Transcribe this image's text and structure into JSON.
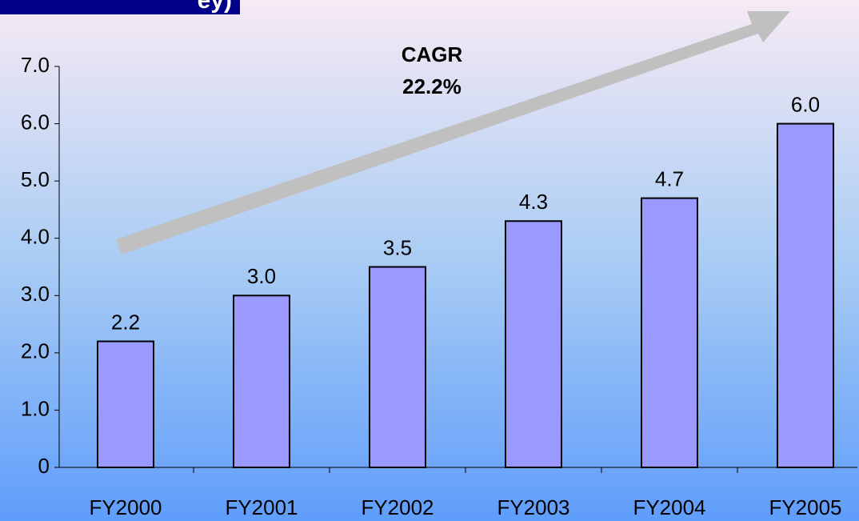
{
  "chart_data": {
    "type": "bar",
    "title": "ey)",
    "annotations": [
      "CAGR",
      "22.2%"
    ],
    "categories": [
      "FY2000",
      "FY2001",
      "FY2002",
      "FY2003",
      "FY2004",
      "FY2005"
    ],
    "values": [
      2.2,
      3.0,
      3.5,
      4.3,
      4.7,
      6.0
    ],
    "value_labels": [
      "2.2",
      "3.0",
      "3.5",
      "4.3",
      "4.7",
      "6.0"
    ],
    "color": "#9999ff",
    "ylim": [
      0,
      7
    ],
    "yticks": [
      0,
      {
        "value": 1,
        "label": "1.0"
      },
      {
        "value": 2,
        "label": "2.0"
      },
      {
        "value": 3,
        "label": "3.0"
      },
      {
        "value": 4,
        "label": "4.0"
      },
      {
        "value": 5,
        "label": "5.0"
      },
      {
        "value": 6,
        "label": "6.0"
      },
      {
        "value": 7,
        "label": "7.0"
      }
    ],
    "grid": false
  }
}
